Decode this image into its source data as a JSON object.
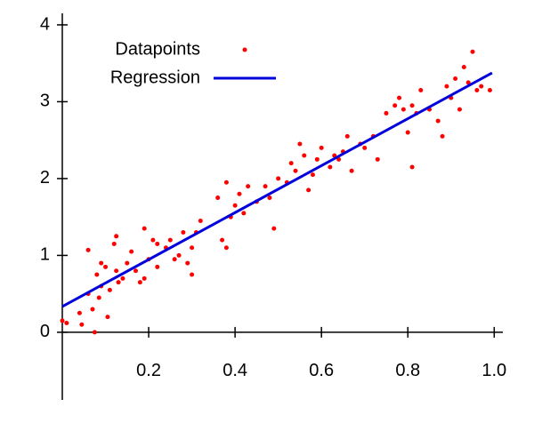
{
  "chart_data": {
    "type": "scatter",
    "xlim": [
      0,
      1.02
    ],
    "ylim": [
      -0.88,
      4.15
    ],
    "xticks": [
      0.2,
      0.4,
      0.6,
      0.8,
      {
        "value": 1.0,
        "label": "1.0"
      }
    ],
    "yticks": [
      0,
      1,
      2,
      3,
      4
    ],
    "grid": false,
    "legend": "top-left",
    "series": [
      {
        "name": "Datapoints",
        "color": "#ff0000",
        "style": "points",
        "x": [
          0.0,
          0.01,
          0.04,
          0.045,
          0.06,
          0.06,
          0.07,
          0.075,
          0.08,
          0.085,
          0.09,
          0.09,
          0.1,
          0.105,
          0.11,
          0.12,
          0.125,
          0.125,
          0.13,
          0.14,
          0.15,
          0.16,
          0.17,
          0.18,
          0.19,
          0.19,
          0.2,
          0.21,
          0.22,
          0.22,
          0.24,
          0.25,
          0.26,
          0.27,
          0.28,
          0.29,
          0.3,
          0.3,
          0.31,
          0.32,
          0.36,
          0.37,
          0.38,
          0.38,
          0.39,
          0.4,
          0.41,
          0.42,
          0.43,
          0.45,
          0.47,
          0.48,
          0.49,
          0.5,
          0.52,
          0.53,
          0.54,
          0.55,
          0.56,
          0.57,
          0.58,
          0.59,
          0.6,
          0.62,
          0.63,
          0.64,
          0.65,
          0.66,
          0.67,
          0.69,
          0.7,
          0.72,
          0.73,
          0.75,
          0.77,
          0.78,
          0.79,
          0.8,
          0.81,
          0.81,
          0.82,
          0.83,
          0.85,
          0.87,
          0.88,
          0.89,
          0.9,
          0.91,
          0.92,
          0.93,
          0.94,
          0.95,
          0.96,
          0.97,
          0.99
        ],
        "values": [
          0.15,
          0.12,
          0.25,
          0.1,
          0.5,
          1.07,
          0.3,
          0.0,
          0.75,
          0.45,
          0.9,
          0.6,
          0.85,
          0.2,
          0.55,
          1.15,
          1.25,
          0.8,
          0.65,
          0.7,
          0.9,
          1.05,
          0.8,
          0.65,
          0.7,
          1.35,
          0.95,
          1.2,
          1.15,
          0.85,
          1.1,
          1.2,
          0.95,
          1.0,
          1.3,
          0.9,
          0.75,
          1.1,
          1.3,
          1.45,
          1.75,
          1.2,
          1.95,
          1.1,
          1.5,
          1.65,
          1.8,
          1.55,
          1.9,
          1.7,
          1.9,
          1.75,
          1.35,
          2.0,
          1.95,
          2.2,
          2.1,
          2.45,
          2.3,
          1.85,
          2.05,
          2.25,
          2.4,
          2.15,
          2.3,
          2.25,
          2.35,
          2.55,
          2.1,
          2.45,
          2.4,
          2.55,
          2.25,
          2.85,
          2.95,
          3.05,
          2.9,
          2.6,
          2.15,
          2.95,
          2.85,
          3.15,
          2.9,
          2.75,
          2.55,
          3.2,
          3.05,
          3.3,
          2.9,
          3.45,
          3.25,
          3.65,
          3.15,
          3.2,
          3.15
        ]
      },
      {
        "name": "Regression",
        "color": "#0000dd",
        "style": "line",
        "x": [
          0,
          0.995
        ],
        "values": [
          0.335,
          3.375
        ]
      }
    ]
  }
}
